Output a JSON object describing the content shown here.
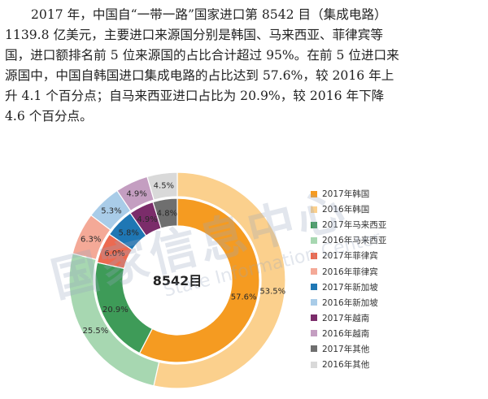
{
  "paragraph": {
    "lines": [
      "2017 年，中国自“一带一路”国家进口第 8542 目（集成电路）",
      "1139.8 亿美元，主要进口来源国分别是韩国、马来西亚、菲律宾等",
      "国，进口额排名前 5 位来源国的占比合计超过 95%。在前 5 位进口来",
      "源国中，中国自韩国进口集成电路的占比达到 57.6%，较 2016 年上",
      "升 4.1 个百分点；自马来西亚进口占比为 20.9%，较 2016 年下降",
      "4.6 个百分点。"
    ]
  },
  "watermark": {
    "cn": "国家信息中心",
    "en": "State Information Center"
  },
  "chart_data": {
    "type": "pie",
    "subtype": "nested-donut",
    "center_label": "8542目",
    "categories": [
      "韩国",
      "马来西亚",
      "菲律宾",
      "新加坡",
      "越南",
      "其他"
    ],
    "series": [
      {
        "name": "2017",
        "ring": "inner",
        "values": [
          57.6,
          20.9,
          6.0,
          5.8,
          4.9,
          4.8
        ],
        "labels": [
          "57.6%",
          "20.9%",
          "6.0%",
          "5.8%",
          "4.9%",
          "4.8%"
        ],
        "colors": [
          "#f59b21",
          "#3e9b58",
          "#ec6a51",
          "#1f77b4",
          "#7b2c6a",
          "#6f6f6f"
        ]
      },
      {
        "name": "2016",
        "ring": "outer",
        "values": [
          53.5,
          25.5,
          6.3,
          5.3,
          4.9,
          4.5
        ],
        "labels": [
          "53.5%",
          "25.5%",
          "6.3%",
          "5.3%",
          "4.9%",
          "4.5%"
        ],
        "colors": [
          "#fbd08d",
          "#a7d7b1",
          "#f4a997",
          "#a9cce8",
          "#c49ec1",
          "#d9d9d9"
        ]
      }
    ],
    "legend": {
      "placement": "right",
      "items": [
        {
          "label": "2017年韩国",
          "color": "#f59b21"
        },
        {
          "label": "2016年韩国",
          "color": "#fbd08d"
        },
        {
          "label": "2017年马来西亚",
          "color": "#3e9b58"
        },
        {
          "label": "2016年马来西亚",
          "color": "#a7d7b1"
        },
        {
          "label": "2017年菲律宾",
          "color": "#ec6a51"
        },
        {
          "label": "2016年菲律宾",
          "color": "#f4a997"
        },
        {
          "label": "2017年新加坡",
          "color": "#1f77b4"
        },
        {
          "label": "2016年新加坡",
          "color": "#a9cce8"
        },
        {
          "label": "2017年越南",
          "color": "#7b2c6a"
        },
        {
          "label": "2016年越南",
          "color": "#c49ec1"
        },
        {
          "label": "2017年其他",
          "color": "#6f6f6f"
        },
        {
          "label": "2016年其他",
          "color": "#d9d9d9"
        }
      ]
    }
  }
}
